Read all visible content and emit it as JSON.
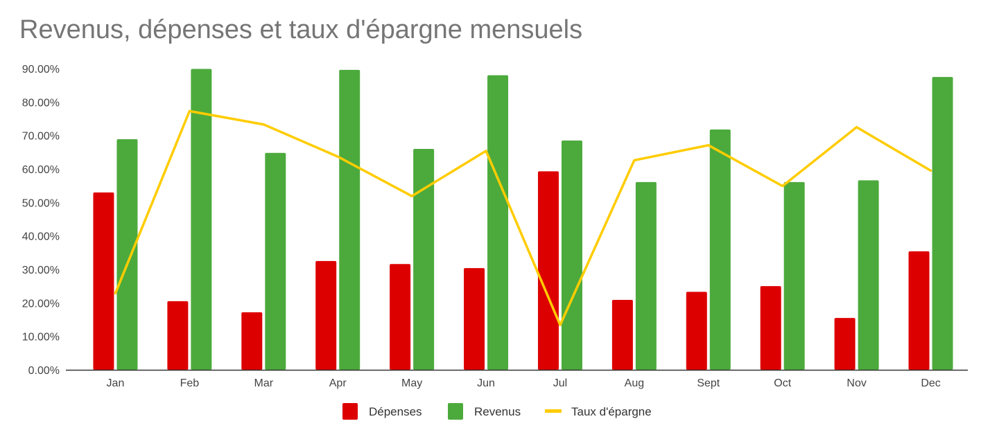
{
  "chart_data": {
    "type": "bar",
    "title": "Revenus, dépenses et taux d'épargne mensuels",
    "categories": [
      "Jan",
      "Feb",
      "Mar",
      "Apr",
      "May",
      "Jun",
      "Jul",
      "Aug",
      "Sept",
      "Oct",
      "Nov",
      "Dec"
    ],
    "series": [
      {
        "name": "Dépenses",
        "type": "bar",
        "color": "#dd0000",
        "values": [
          53,
          20.5,
          17.2,
          32.5,
          31.6,
          30.4,
          59.3,
          20.9,
          23.3,
          25,
          15.5,
          35.4
        ]
      },
      {
        "name": "Revenus",
        "type": "bar",
        "color": "#4caa3c",
        "values": [
          68.9,
          89.9,
          64.8,
          89.6,
          66,
          88,
          68.5,
          56.1,
          71.8,
          56.1,
          56.6,
          87.5
        ]
      },
      {
        "name": "Taux d'épargne",
        "type": "line",
        "color": "#ffcc00",
        "values": [
          22.9,
          77.3,
          73.3,
          63.7,
          51.9,
          65.4,
          13.4,
          62.6,
          67.1,
          54.9,
          72.5,
          59.5
        ]
      }
    ],
    "y_ticks": [
      "0.00%",
      "10.00%",
      "20.00%",
      "30.00%",
      "40.00%",
      "50.00%",
      "60.00%",
      "70.00%",
      "80.00%",
      "90.00%"
    ],
    "ylim": [
      0,
      90
    ],
    "grid": false,
    "legend_position": "bottom"
  }
}
